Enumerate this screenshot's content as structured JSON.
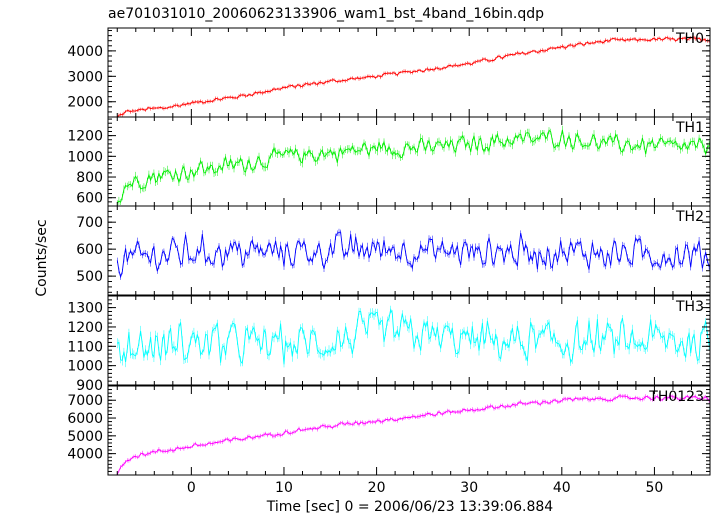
{
  "chart_data": {
    "type": "line",
    "title": "ae701031010_20060623133906_wam1_bst_4band_16bin.qdp",
    "xlabel": "Time [sec] 0 = 2006/06/23 13:39:06.884",
    "ylabel": "Counts/sec",
    "xlim": [
      -9,
      56
    ],
    "x_ticks": [
      0,
      10,
      20,
      30,
      40,
      50
    ],
    "x_tick_labels": [
      "0",
      "10",
      "20",
      "30",
      "40",
      "50"
    ],
    "grid": false,
    "panels": [
      {
        "name": "TH0",
        "color": "#ff0000",
        "ylim": [
          1400,
          4900
        ],
        "y_ticks": [
          2000,
          3000,
          4000
        ],
        "y_tick_labels": [
          "2000",
          "3000",
          "4000"
        ],
        "x": [
          -8,
          -7,
          -5,
          -3,
          0,
          5,
          10,
          15,
          20,
          25,
          30,
          35,
          40,
          45,
          50,
          55
        ],
        "values": [
          1400,
          1600,
          1700,
          1750,
          1950,
          2200,
          2550,
          2800,
          3000,
          3250,
          3500,
          3850,
          4150,
          4400,
          4450,
          4450
        ]
      },
      {
        "name": "TH1",
        "color": "#00ee00",
        "ylim": [
          520,
          1380
        ],
        "y_ticks": [
          600,
          800,
          1000,
          1200
        ],
        "y_tick_labels": [
          "600",
          "800",
          "1000",
          "1200"
        ],
        "x": [
          -8,
          -7,
          -5,
          0,
          5,
          10,
          15,
          20,
          25,
          30,
          35,
          40,
          45,
          50,
          55
        ],
        "values": [
          560,
          730,
          790,
          860,
          920,
          1000,
          1030,
          1080,
          1080,
          1120,
          1160,
          1180,
          1120,
          1100,
          1080
        ]
      },
      {
        "name": "TH2",
        "color": "#0000ff",
        "ylim": [
          430,
          760
        ],
        "y_ticks": [
          500,
          600,
          700
        ],
        "y_tick_labels": [
          "500",
          "600",
          "700"
        ],
        "x": [
          -8,
          0,
          10,
          20,
          30,
          40,
          50,
          55
        ],
        "values": [
          560,
          590,
          590,
          600,
          590,
          590,
          580,
          580
        ]
      },
      {
        "name": "TH3",
        "color": "#00ffff",
        "ylim": [
          900,
          1360
        ],
        "y_ticks": [
          900,
          1000,
          1100,
          1200,
          1300
        ],
        "y_tick_labels": [
          "900",
          "1000",
          "1100",
          "1200",
          "1300"
        ],
        "x": [
          -8,
          0,
          10,
          15,
          20,
          30,
          40,
          50,
          55
        ],
        "values": [
          1080,
          1120,
          1110,
          1120,
          1180,
          1130,
          1120,
          1130,
          1120
        ]
      },
      {
        "name": "TH0123",
        "color": "#ff00ff",
        "ylim": [
          2800,
          7800
        ],
        "y_ticks": [
          4000,
          5000,
          6000,
          7000
        ],
        "y_tick_labels": [
          "4000",
          "5000",
          "6000",
          "7000"
        ],
        "x": [
          -8,
          -7,
          -5,
          0,
          5,
          10,
          15,
          20,
          25,
          30,
          35,
          40,
          45,
          50,
          55
        ],
        "values": [
          2900,
          3700,
          4000,
          4400,
          4800,
          5200,
          5550,
          5850,
          6150,
          6450,
          6750,
          7000,
          7100,
          7150,
          7100
        ]
      }
    ]
  }
}
